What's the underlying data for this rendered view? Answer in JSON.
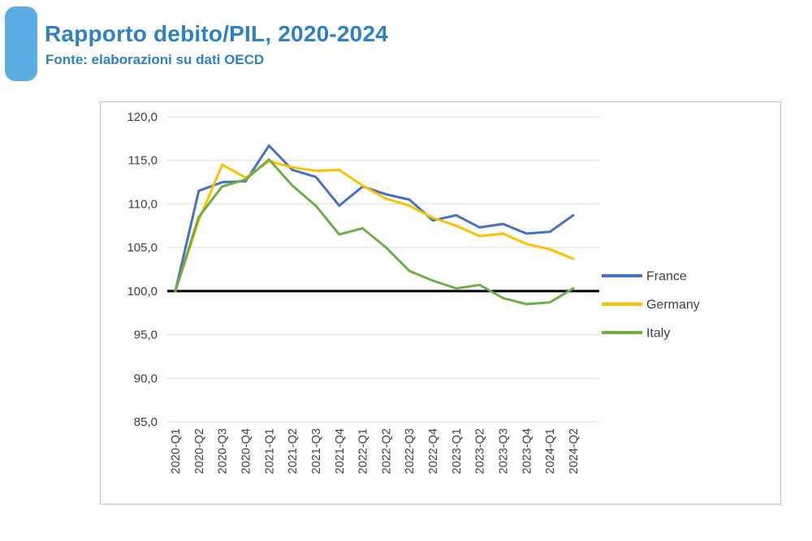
{
  "page": {
    "title": "Rapporto debito/PIL, 2020-2024",
    "subtitle": "Fonte: elaborazioni su dati OECD",
    "accent_color": "#2E81C4",
    "tab_color": "#5CADE0"
  },
  "chart_data": {
    "type": "line",
    "title": "Rapporto debito/PIL, 2020-2024",
    "subtitle": "Fonte: elaborazioni su dati OECD",
    "categories": [
      "2020-Q1",
      "2020-Q2",
      "2020-Q3",
      "2020-Q4",
      "2021-Q1",
      "2021-Q2",
      "2021-Q3",
      "2021-Q4",
      "2022-Q1",
      "2022-Q2",
      "2022-Q3",
      "2022-Q4",
      "2023-Q1",
      "2023-Q2",
      "2023-Q3",
      "2023-Q4",
      "2024-Q1",
      "2024-Q2"
    ],
    "series": [
      {
        "name": "France",
        "color": "#4472C4",
        "values": [
          100.0,
          111.5,
          112.5,
          112.6,
          116.7,
          113.9,
          113.1,
          109.8,
          112.0,
          111.1,
          110.5,
          108.1,
          108.7,
          107.3,
          107.7,
          106.6,
          106.8,
          108.7
        ]
      },
      {
        "name": "Germany",
        "color": "#FFC000",
        "values": [
          100.0,
          108.1,
          114.5,
          113.0,
          114.9,
          114.2,
          113.8,
          113.9,
          112.1,
          110.6,
          109.8,
          108.4,
          107.5,
          106.3,
          106.6,
          105.4,
          104.8,
          103.7
        ]
      },
      {
        "name": "Italy",
        "color": "#70AD47",
        "values": [
          100.0,
          108.5,
          112.0,
          112.8,
          115.1,
          112.1,
          109.8,
          106.5,
          107.2,
          105.0,
          102.3,
          101.2,
          100.3,
          100.7,
          99.2,
          98.5,
          98.7,
          100.3
        ]
      }
    ],
    "baseline": {
      "value": 100,
      "color": "#000000"
    },
    "ylim": [
      85,
      120
    ],
    "ytick_step": 5,
    "ytick_labels": [
      "85,0",
      "90,0",
      "95,0",
      "100,0",
      "105,0",
      "110,0",
      "115,0",
      "120,0"
    ],
    "grid": true,
    "grid_color": "#D9D9D9",
    "axis_label_color": "#404040",
    "legend_position": "right",
    "legend_labels": [
      "France",
      "Germany",
      "Italy"
    ]
  }
}
